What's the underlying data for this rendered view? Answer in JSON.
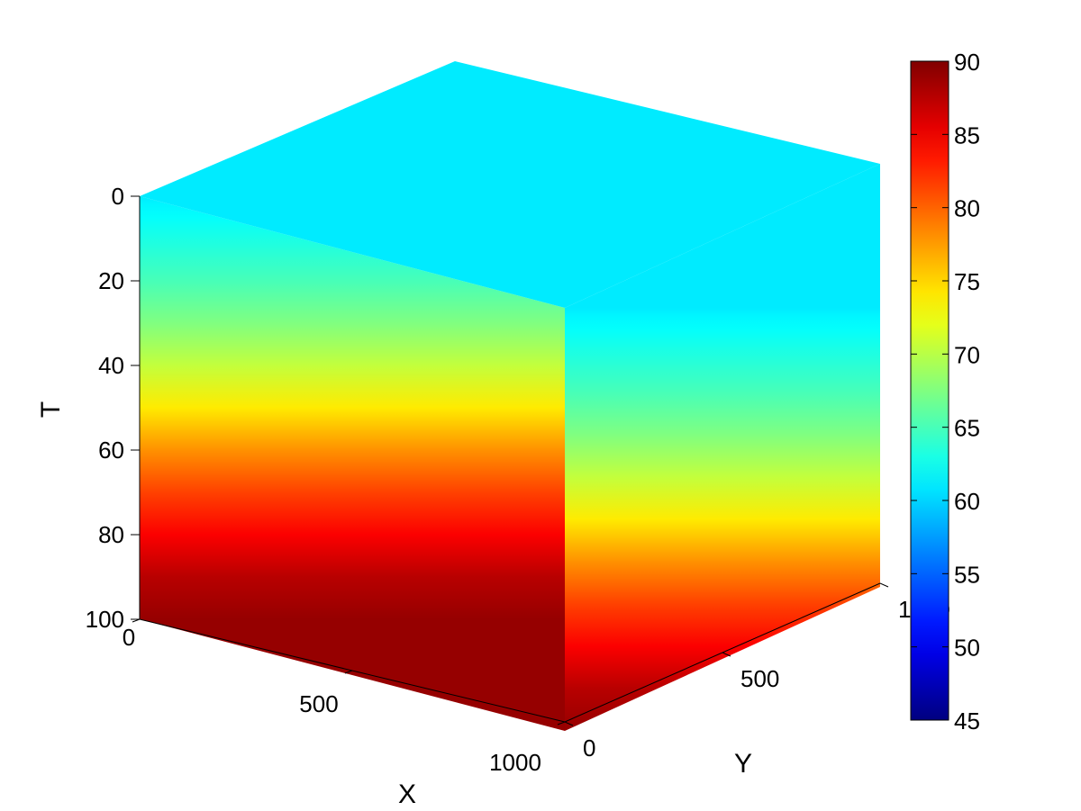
{
  "chart_data": {
    "type": "heatmap",
    "subtype": "3d-volume-slice-cube",
    "title": "",
    "xlabel": "X",
    "ylabel": "Y",
    "zlabel": "T",
    "xlim": [
      0,
      1000
    ],
    "ylim": [
      0,
      1000
    ],
    "zlim": [
      0,
      100
    ],
    "z_reversed": true,
    "xticks": [
      "0",
      "500",
      "1000"
    ],
    "yticks": [
      "0",
      "500",
      "1000"
    ],
    "zticks": [
      "0",
      "20",
      "40",
      "60",
      "80",
      "100"
    ],
    "colormap": "jet",
    "colorbar": {
      "clim": [
        45,
        90
      ],
      "ticks": [
        "45",
        "50",
        "55",
        "60",
        "65",
        "70",
        "75",
        "80",
        "85",
        "90"
      ],
      "placement": "right"
    },
    "grid": false,
    "profile": {
      "description_of_values": "Color value as a function of T (uniform across X and Y)",
      "t": [
        0,
        2,
        5,
        10,
        20,
        30,
        40,
        50,
        60,
        70,
        80,
        90,
        100
      ],
      "value": [
        61,
        61.5,
        62,
        63,
        65,
        67.5,
        70.5,
        74,
        78,
        81.5,
        84.5,
        87.5,
        89
      ]
    },
    "top_face_value": 61
  }
}
